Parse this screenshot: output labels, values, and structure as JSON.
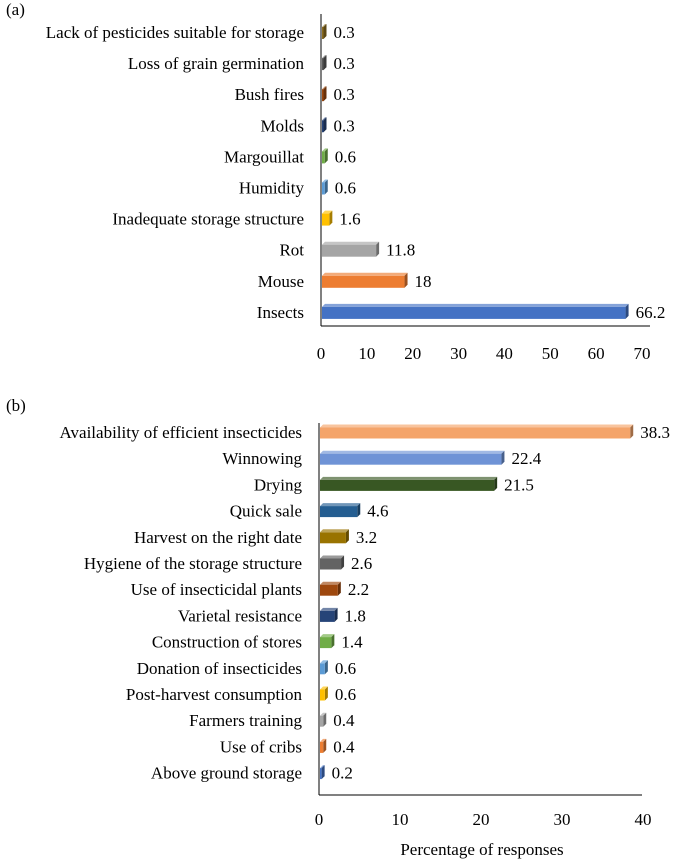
{
  "chart_data": [
    {
      "panel_label": "(a)",
      "type": "bar",
      "orientation": "horizontal",
      "categories": [
        "Lack of pesticides suitable for storage",
        "Loss of grain germination",
        "Bush fires",
        "Molds",
        "Margouillat",
        "Humidity",
        "Inadequate storage structure",
        "Rot",
        "Mouse",
        "Insects"
      ],
      "values": [
        0.3,
        0.3,
        0.3,
        0.3,
        0.6,
        0.6,
        1.6,
        11.8,
        18,
        66.2
      ],
      "value_labels": [
        "0.3",
        "0.3",
        "0.3",
        "0.3",
        "0.6",
        "0.6",
        "1.6",
        "11.8",
        "18",
        "66.2"
      ],
      "colors": [
        "#8c6d1f",
        "#5a5a5a",
        "#9e480e",
        "#264478",
        "#70ad47",
        "#5b9bd5",
        "#ffc000",
        "#a5a5a5",
        "#ed7d31",
        "#4472c4"
      ],
      "xlim": [
        0,
        70
      ],
      "xticks": [
        "0",
        "10",
        "20",
        "30",
        "40",
        "50",
        "60",
        "70"
      ],
      "xlabel": "",
      "ylabel": "",
      "grid": false,
      "legend": "none"
    },
    {
      "panel_label": "(b)",
      "type": "bar",
      "orientation": "horizontal",
      "categories": [
        "Availability of efficient insecticides",
        "Winnowing",
        "Drying",
        "Quick sale",
        "Harvest on the right date",
        "Hygiene of the storage structure",
        "Use of insecticidal plants",
        "Varietal resistance",
        "Construction of stores",
        "Donation of insecticides",
        "Post-harvest consumption",
        "Farmers training",
        "Use of cribs",
        "Above ground storage"
      ],
      "values": [
        38.3,
        22.4,
        21.5,
        4.6,
        3.2,
        2.6,
        2.2,
        1.8,
        1.4,
        0.6,
        0.6,
        0.4,
        0.4,
        0.2
      ],
      "value_labels": [
        "38.3",
        "22.4",
        "21.5",
        "4.6",
        "3.2",
        "2.6",
        "2.2",
        "1.8",
        "1.4",
        "0.6",
        "0.6",
        "0.4",
        "0.4",
        "0.2"
      ],
      "colors": [
        "#f4a46a",
        "#6f93d6",
        "#385723",
        "#255e91",
        "#997300",
        "#636363",
        "#9e480e",
        "#264478",
        "#70ad47",
        "#5b9bd5",
        "#ffc000",
        "#a5a5a5",
        "#ed7d31",
        "#4472c4"
      ],
      "xlim": [
        0,
        40
      ],
      "xticks": [
        "0",
        "10",
        "20",
        "30",
        "40"
      ],
      "xlabel": "Percentage of responses",
      "ylabel": "",
      "grid": false,
      "legend": "none"
    }
  ]
}
